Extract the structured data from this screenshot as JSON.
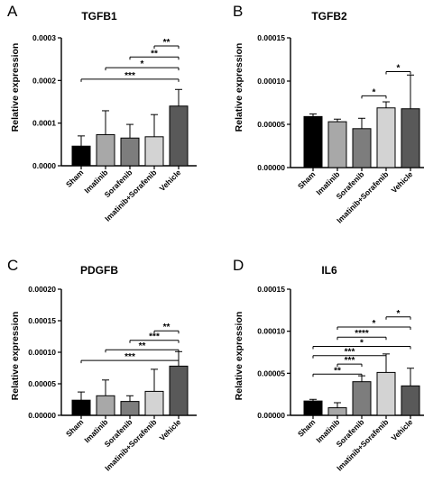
{
  "chart_data": [
    {
      "type": "bar",
      "panel_letter": "A",
      "title": "TGFB1",
      "ylabel": "Relative expression",
      "categories": [
        "Sham",
        "Imatinib",
        "Sorafenib",
        "Imatinib+Sorafenib",
        "Vehicle"
      ],
      "values": [
        4.6e-05,
        7.3e-05,
        6.5e-05,
        6.8e-05,
        0.00014
      ],
      "errors": [
        2.4e-05,
        5.6e-05,
        3.2e-05,
        5.2e-05,
        3.9e-05
      ],
      "colors": [
        "#000000",
        "#a8a8a8",
        "#7d7d7d",
        "#d3d3d3",
        "#595959"
      ],
      "ylim": [
        0,
        0.0003
      ],
      "yticks": [
        "0.0000",
        "0.0001",
        "0.0002",
        "0.0003"
      ],
      "ytick_values": [
        0,
        0.0001,
        0.0002,
        0.0003
      ],
      "significance": [
        {
          "from": 3,
          "to": 4,
          "label": "**",
          "y": 0.000281
        },
        {
          "from": 2,
          "to": 4,
          "label": "**",
          "y": 0.000255
        },
        {
          "from": 1,
          "to": 4,
          "label": "*",
          "y": 0.00023
        },
        {
          "from": 0,
          "to": 4,
          "label": "***",
          "y": 0.000203
        }
      ]
    },
    {
      "type": "bar",
      "panel_letter": "B",
      "title": "TGFB2",
      "ylabel": "Relative expression",
      "categories": [
        "Sham",
        "Imatinib",
        "Sorafenib",
        "Imatinib+Sorafenib",
        "Vehicle"
      ],
      "values": [
        5.9e-05,
        5.3e-05,
        4.5e-05,
        6.9e-05,
        6.8e-05
      ],
      "errors": [
        3e-06,
        3e-06,
        1.2e-05,
        7e-06,
        3.9e-05
      ],
      "colors": [
        "#000000",
        "#a8a8a8",
        "#7d7d7d",
        "#d3d3d3",
        "#595959"
      ],
      "ylim": [
        0,
        0.00015
      ],
      "yticks": [
        "0.00000",
        "0.00005",
        "0.00010",
        "0.00015"
      ],
      "ytick_values": [
        0,
        5e-05,
        0.0001,
        0.00015
      ],
      "significance": [
        {
          "from": 3,
          "to": 4,
          "label": "*",
          "y": 0.000111
        },
        {
          "from": 2,
          "to": 3,
          "label": "*",
          "y": 8.3e-05
        }
      ]
    },
    {
      "type": "bar",
      "panel_letter": "C",
      "title": "PDGFB",
      "ylabel": "Relative expression",
      "categories": [
        "Sham",
        "Imatinib",
        "Sorafenib",
        "Imatinib+Sorafenib",
        "Vehicle"
      ],
      "values": [
        2.4e-05,
        3.1e-05,
        2.2e-05,
        3.8e-05,
        7.8e-05
      ],
      "errors": [
        1.3e-05,
        2.5e-05,
        9e-06,
        3.5e-05,
        2.3e-05
      ],
      "colors": [
        "#000000",
        "#a8a8a8",
        "#7d7d7d",
        "#d3d3d3",
        "#595959"
      ],
      "ylim": [
        0,
        0.0002
      ],
      "yticks": [
        "0.00000",
        "0.00005",
        "0.00010",
        "0.00015",
        "0.00020"
      ],
      "ytick_values": [
        0,
        5e-05,
        0.0001,
        0.00015,
        0.0002
      ],
      "significance": [
        {
          "from": 3,
          "to": 4,
          "label": "**",
          "y": 0.000134
        },
        {
          "from": 2,
          "to": 4,
          "label": "***",
          "y": 0.000119
        },
        {
          "from": 1,
          "to": 4,
          "label": "**",
          "y": 0.000104
        },
        {
          "from": 0,
          "to": 4,
          "label": "***",
          "y": 8.7e-05
        }
      ]
    },
    {
      "type": "bar",
      "panel_letter": "D",
      "title": "IL6",
      "ylabel": "Relative expression",
      "categories": [
        "Sham",
        "Imatinib",
        "Sorafenib",
        "Imatinib+Sorafenib",
        "Vehicle"
      ],
      "values": [
        1.7e-05,
        9e-06,
        4e-05,
        5.1e-05,
        3.5e-05
      ],
      "errors": [
        2e-06,
        6e-06,
        7e-06,
        2.2e-05,
        2.1e-05
      ],
      "colors": [
        "#000000",
        "#a8a8a8",
        "#7d7d7d",
        "#d3d3d3",
        "#595959"
      ],
      "ylim": [
        0,
        0.00015
      ],
      "yticks": [
        "0.00000",
        "0.00005",
        "0.00010",
        "0.00015"
      ],
      "ytick_values": [
        0,
        5e-05,
        0.0001,
        0.00015
      ],
      "significance": [
        {
          "from": 3,
          "to": 4,
          "label": "*",
          "y": 0.000117
        },
        {
          "from": 1,
          "to": 4,
          "label": "*",
          "y": 0.000105
        },
        {
          "from": 1,
          "to": 3,
          "label": "****",
          "y": 9.3e-05
        },
        {
          "from": 0,
          "to": 4,
          "label": "*",
          "y": 8.2e-05
        },
        {
          "from": 0,
          "to": 3,
          "label": "***",
          "y": 7.1e-05
        },
        {
          "from": 1,
          "to": 2,
          "label": "***",
          "y": 6.1e-05
        },
        {
          "from": 0,
          "to": 2,
          "label": "**",
          "y": 4.9e-05
        }
      ]
    }
  ]
}
